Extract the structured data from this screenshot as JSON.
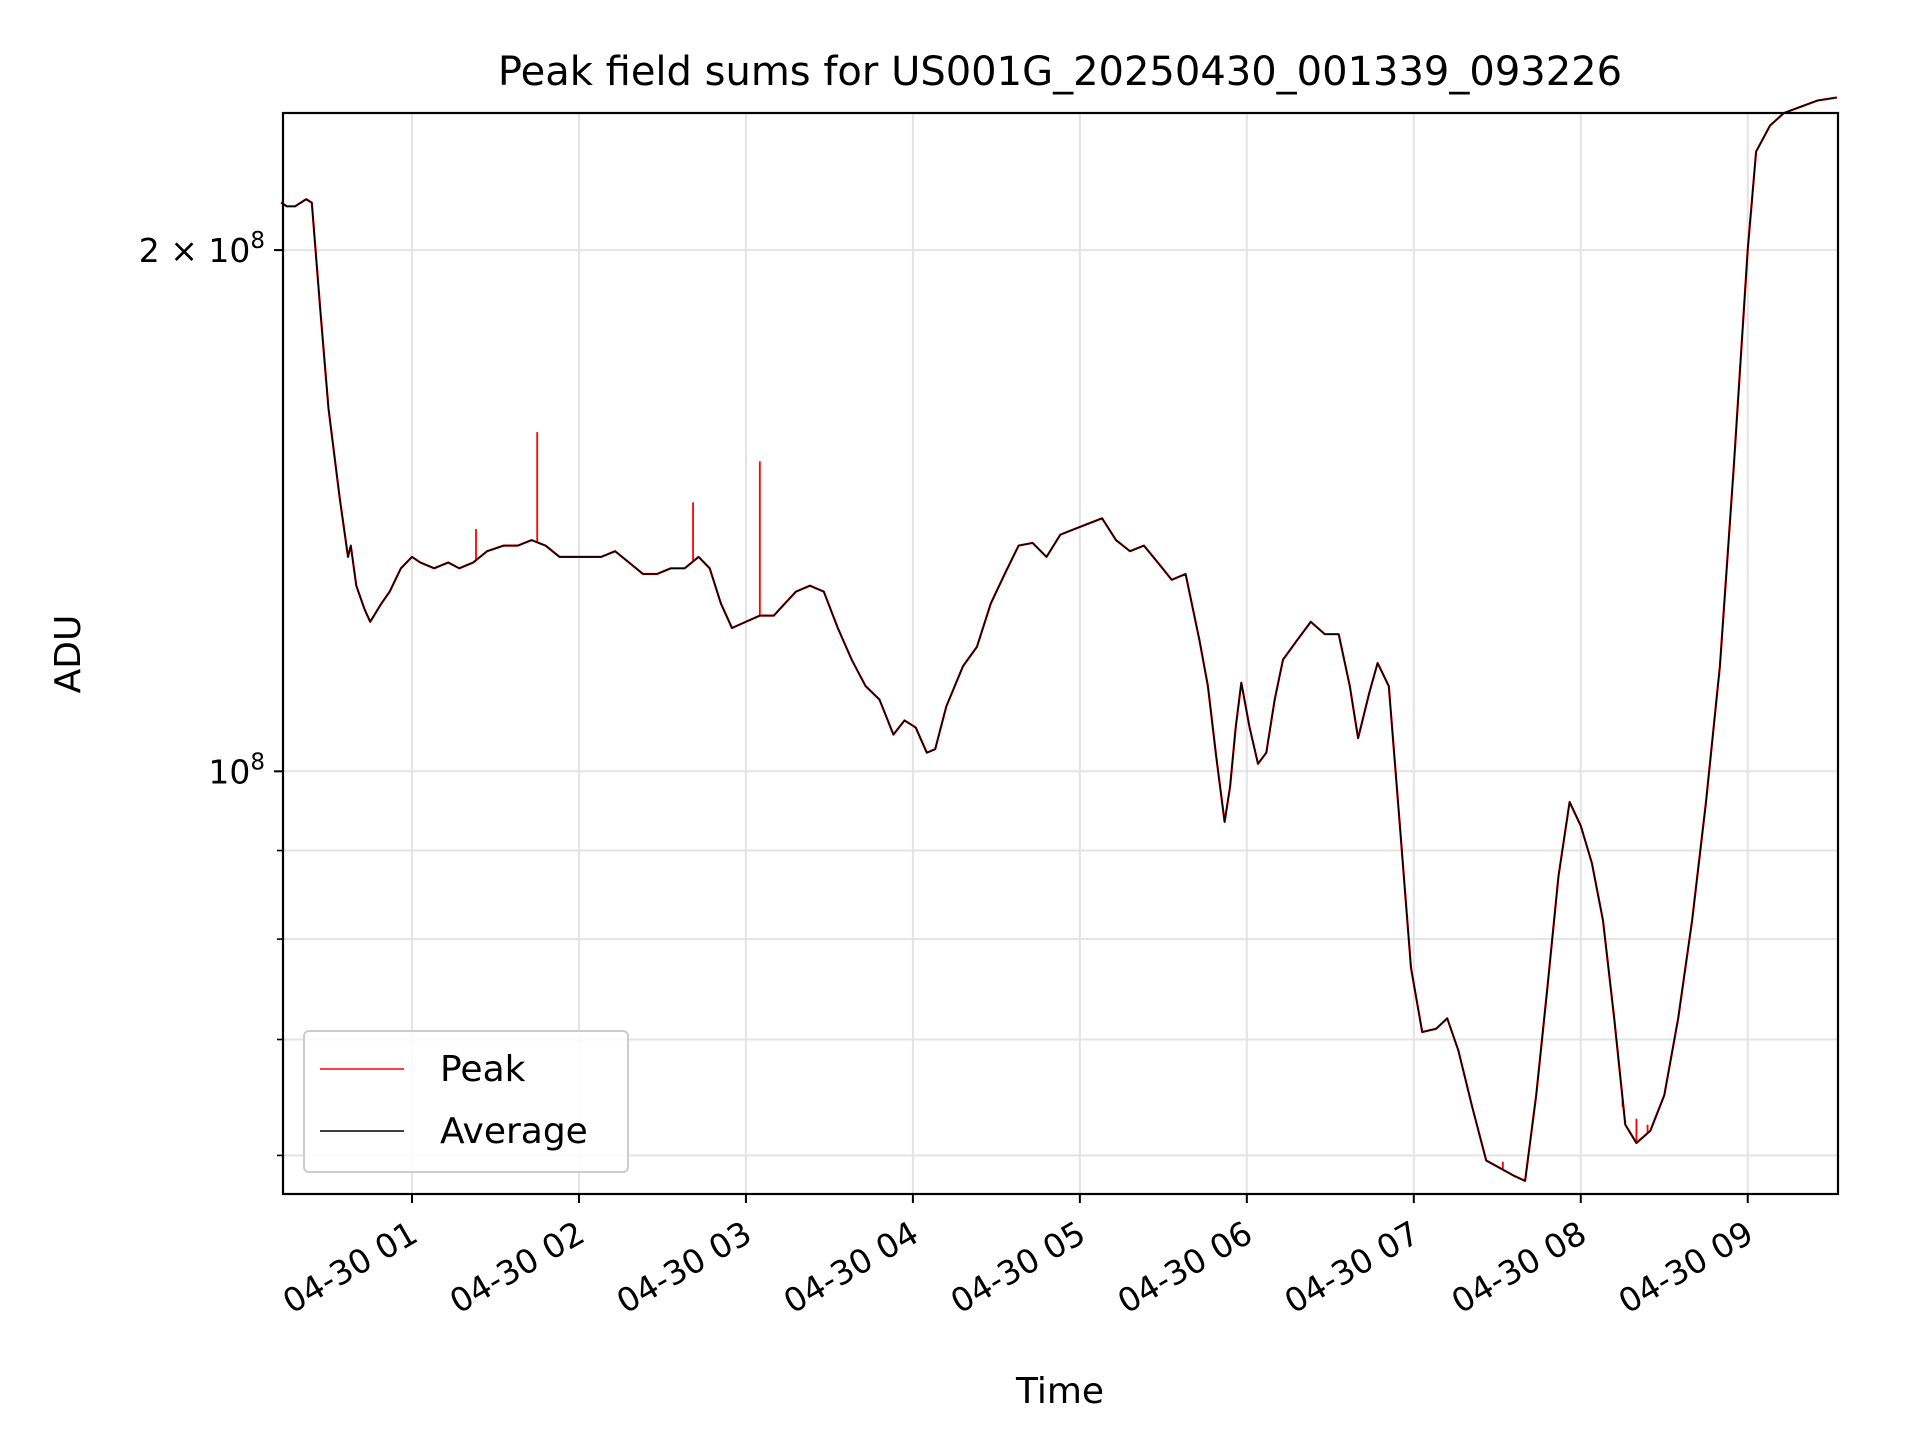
{
  "chart_data": {
    "type": "line",
    "title": "Peak field sums for US001G_20250430_001339_093226",
    "xlabel": "Time",
    "ylabel": "ADU",
    "x_start": "04-30 00:13:39",
    "x_end": "04-30 09:32:26",
    "x_ticks": [
      "04-30 01",
      "04-30 02",
      "04-30 03",
      "04-30 04",
      "04-30 05",
      "04-30 06",
      "04-30 07",
      "04-30 08",
      "04-30 09"
    ],
    "y_scale": "log",
    "ylim": [
      57000000,
      240000000
    ],
    "y_ticks": [
      {
        "value": 100000000,
        "label_base": "10",
        "label_exp": "8"
      },
      {
        "value": 200000000,
        "label_base": "2 × 10",
        "label_exp": "8"
      }
    ],
    "y_minor_ticks": [
      60000000,
      70000000,
      80000000,
      90000000
    ],
    "grid": true,
    "legend_position": "lower-left",
    "series": [
      {
        "name": "Average",
        "color": "#000000",
        "points": [
          [
            "00:13",
            213000000.0
          ],
          [
            "00:15",
            212000000.0
          ],
          [
            "00:18",
            212000000.0
          ],
          [
            "00:22",
            214000000.0
          ],
          [
            "00:24",
            213000000.0
          ],
          [
            "00:27",
            185000000.0
          ],
          [
            "00:30",
            162000000.0
          ],
          [
            "00:34",
            144000000.0
          ],
          [
            "00:37",
            133000000.0
          ],
          [
            "00:38",
            135000000.0
          ],
          [
            "00:40",
            128000000.0
          ],
          [
            "00:43",
            124000000.0
          ],
          [
            "00:45",
            122000000.0
          ],
          [
            "00:49",
            125000000.0
          ],
          [
            "00:52",
            127000000.0
          ],
          [
            "00:56",
            131000000.0
          ],
          [
            "01:00",
            133000000.0
          ],
          [
            "01:03",
            132000000.0
          ],
          [
            "01:08",
            131000000.0
          ],
          [
            "01:13",
            132000000.0
          ],
          [
            "01:17",
            131000000.0
          ],
          [
            "01:22",
            132000000.0
          ],
          [
            "01:27",
            134000000.0
          ],
          [
            "01:33",
            135000000.0
          ],
          [
            "01:38",
            135000000.0
          ],
          [
            "01:43",
            136000000.0
          ],
          [
            "01:48",
            135000000.0
          ],
          [
            "01:53",
            133000000.0
          ],
          [
            "01:58",
            133000000.0
          ],
          [
            "02:03",
            133000000.0
          ],
          [
            "02:08",
            133000000.0
          ],
          [
            "02:13",
            134000000.0
          ],
          [
            "02:18",
            132000000.0
          ],
          [
            "02:23",
            130000000.0
          ],
          [
            "02:28",
            130000000.0
          ],
          [
            "02:33",
            131000000.0
          ],
          [
            "02:38",
            131000000.0
          ],
          [
            "02:43",
            133000000.0
          ],
          [
            "02:47",
            131000000.0
          ],
          [
            "02:51",
            125000000.0
          ],
          [
            "02:55",
            121000000.0
          ],
          [
            "03:00",
            122000000.0
          ],
          [
            "03:05",
            123000000.0
          ],
          [
            "03:10",
            123000000.0
          ],
          [
            "03:14",
            125000000.0
          ],
          [
            "03:18",
            127000000.0
          ],
          [
            "03:23",
            128000000.0
          ],
          [
            "03:28",
            127000000.0
          ],
          [
            "03:33",
            121000000.0
          ],
          [
            "03:38",
            116000000.0
          ],
          [
            "03:43",
            112000000.0
          ],
          [
            "03:48",
            110000000.0
          ],
          [
            "03:53",
            105000000.0
          ],
          [
            "03:57",
            107000000.0
          ],
          [
            "04:01",
            106000000.0
          ],
          [
            "04:05",
            102500000.0
          ],
          [
            "04:08",
            103000000.0
          ],
          [
            "04:12",
            109000000.0
          ],
          [
            "04:18",
            115000000.0
          ],
          [
            "04:23",
            118000000.0
          ],
          [
            "04:28",
            125000000.0
          ],
          [
            "04:33",
            130000000.0
          ],
          [
            "04:38",
            135000000.0
          ],
          [
            "04:43",
            135500000.0
          ],
          [
            "04:48",
            133000000.0
          ],
          [
            "04:53",
            137000000.0
          ],
          [
            "04:58",
            138000000.0
          ],
          [
            "05:03",
            139000000.0
          ],
          [
            "05:08",
            140000000.0
          ],
          [
            "05:13",
            136000000.0
          ],
          [
            "05:18",
            134000000.0
          ],
          [
            "05:23",
            135000000.0
          ],
          [
            "05:28",
            132000000.0
          ],
          [
            "05:33",
            129000000.0
          ],
          [
            "05:38",
            130000000.0
          ],
          [
            "05:43",
            119000000.0
          ],
          [
            "05:46",
            112000000.0
          ],
          [
            "05:49",
            102000000.0
          ],
          [
            "05:52",
            93500000.0
          ],
          [
            "05:54",
            98000000.0
          ],
          [
            "05:56",
            106000000.0
          ],
          [
            "05:58",
            112500000.0
          ],
          [
            "06:01",
            106000000.0
          ],
          [
            "06:04",
            101000000.0
          ],
          [
            "06:07",
            102500000.0
          ],
          [
            "06:10",
            110000000.0
          ],
          [
            "06:13",
            116000000.0
          ],
          [
            "06:18",
            119000000.0
          ],
          [
            "06:23",
            122000000.0
          ],
          [
            "06:28",
            120000000.0
          ],
          [
            "06:33",
            120000000.0
          ],
          [
            "06:37",
            112000000.0
          ],
          [
            "06:40",
            104500000.0
          ],
          [
            "06:44",
            111000000.0
          ],
          [
            "06:47",
            115500000.0
          ],
          [
            "06:51",
            112000000.0
          ],
          [
            "06:55",
            93000000.0
          ],
          [
            "06:59",
            77000000.0
          ],
          [
            "07:03",
            70700000.0
          ],
          [
            "07:08",
            71000000.0
          ],
          [
            "07:12",
            72000000.0
          ],
          [
            "07:16",
            69000000.0
          ],
          [
            "07:21",
            64000000.0
          ],
          [
            "07:26",
            59600000.0
          ],
          [
            "07:31",
            59000000.0
          ],
          [
            "07:36",
            58400000.0
          ],
          [
            "07:40",
            58000000.0
          ],
          [
            "07:44",
            65000000.0
          ],
          [
            "07:48",
            75000000.0
          ],
          [
            "07:52",
            87000000.0
          ],
          [
            "07:56",
            96000000.0
          ],
          [
            "08:00",
            93000000.0
          ],
          [
            "08:04",
            88500000.0
          ],
          [
            "08:08",
            82000000.0
          ],
          [
            "08:12",
            72000000.0
          ],
          [
            "08:16",
            62500000.0
          ],
          [
            "08:20",
            61000000.0
          ],
          [
            "08:25",
            62000000.0
          ],
          [
            "08:30",
            65000000.0
          ],
          [
            "08:35",
            72000000.0
          ],
          [
            "08:40",
            82000000.0
          ],
          [
            "08:45",
            96000000.0
          ],
          [
            "08:50",
            115000000.0
          ],
          [
            "08:55",
            150000000.0
          ],
          [
            "09:00",
            200000000.0
          ],
          [
            "09:03",
            228000000.0
          ],
          [
            "09:08",
            236000000.0
          ],
          [
            "09:13",
            240000000.0
          ],
          [
            "09:19",
            242000000.0
          ],
          [
            "09:25",
            244000000.0
          ],
          [
            "09:32",
            245000000.0
          ]
        ]
      },
      {
        "name": "Peak",
        "color": "#ff0000",
        "spikes": [
          [
            "01:23",
            138000000.0
          ],
          [
            "01:45",
            157000000.0
          ],
          [
            "02:41",
            143000000.0
          ],
          [
            "03:05",
            151000000.0
          ],
          [
            "07:32",
            59500000.0
          ],
          [
            "08:15",
            64000000.0
          ],
          [
            "08:20",
            63000000.0
          ],
          [
            "08:24",
            62500000.0
          ]
        ]
      }
    ]
  }
}
